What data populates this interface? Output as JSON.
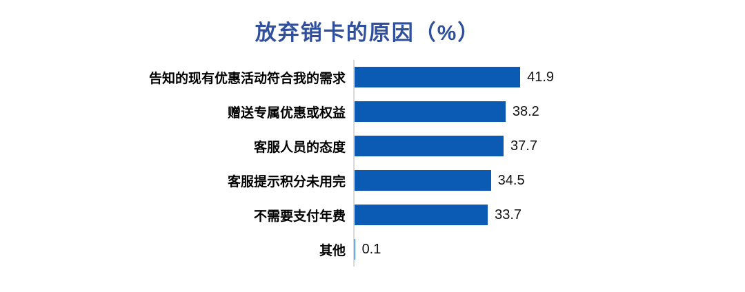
{
  "chart": {
    "title": "放弃销卡的原因（%）"
  },
  "chart_data": {
    "type": "bar",
    "orientation": "horizontal",
    "title": "放弃销卡的原因（%）",
    "categories": [
      "告知的现有优惠活动符合我的需求",
      "赠送专属优惠或权益",
      "客服人员的态度",
      "客服提示积分未用完",
      "不需要支付年费",
      "其他"
    ],
    "values": [
      41.9,
      38.2,
      37.7,
      34.5,
      33.7,
      0.1
    ],
    "xlabel": "",
    "ylabel": "",
    "xlim": [
      0,
      45
    ],
    "grid": false,
    "legend": false,
    "value_label_position": "end-of-bar",
    "bar_color": "#0B5BB5",
    "title_color": "#304F9C",
    "axis_line_color": "#D9D9D9",
    "label_color": "#000000",
    "value_color": "#111111"
  }
}
